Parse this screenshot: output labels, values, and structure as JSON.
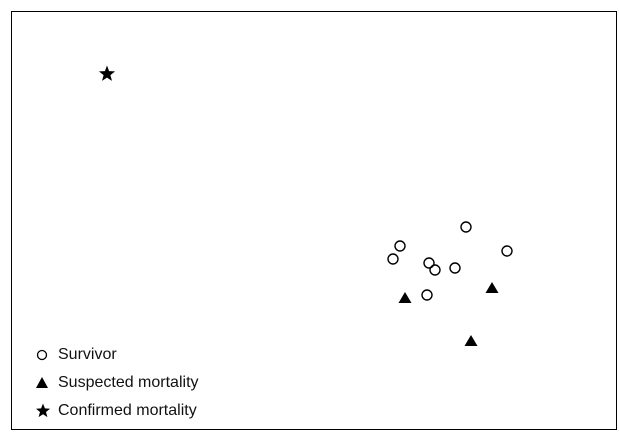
{
  "chart_data": {
    "type": "scatter",
    "title": "",
    "xlabel": "",
    "ylabel": "",
    "grid": false,
    "legend_position": "bottom-left",
    "series": [
      {
        "name": "Survivor",
        "marker": "open-circle",
        "color": "#000000",
        "points": [
          [
            466,
            227
          ],
          [
            400,
            246
          ],
          [
            393,
            259
          ],
          [
            507,
            251
          ],
          [
            429,
            263
          ],
          [
            435,
            270
          ],
          [
            455,
            268
          ],
          [
            427,
            295
          ]
        ]
      },
      {
        "name": "Suspected mortality",
        "marker": "filled-triangle",
        "color": "#000000",
        "points": [
          [
            405,
            298
          ],
          [
            492,
            288
          ],
          [
            471,
            341
          ]
        ]
      },
      {
        "name": "Confirmed mortality",
        "marker": "filled-star",
        "color": "#000000",
        "points": [
          [
            107,
            74
          ]
        ]
      }
    ]
  },
  "legend": {
    "items": [
      {
        "label": "Survivor",
        "symbol": "open-circle-icon"
      },
      {
        "label": "Suspected mortality",
        "symbol": "filled-triangle-icon"
      },
      {
        "label": "Confirmed mortality",
        "symbol": "filled-star-icon"
      }
    ]
  }
}
